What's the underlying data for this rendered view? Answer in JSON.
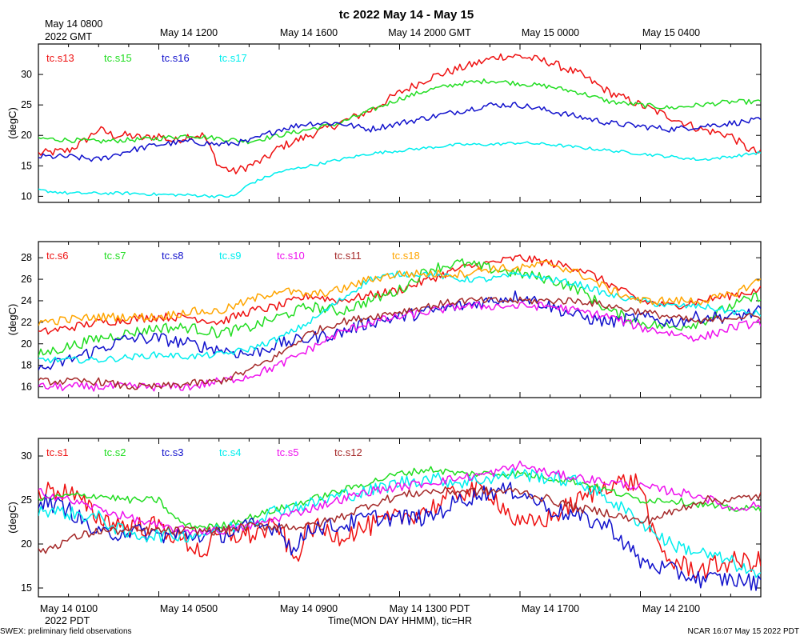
{
  "title": "tc 2022 May 14 - May 15",
  "top_axis": {
    "first_label_line1": "May 14 0800",
    "first_label_line2": "2022 GMT",
    "labels": [
      "May 14 1200",
      "May 14 1600",
      "May 14 2000 GMT",
      "May 15 0000",
      "May 15 0400"
    ]
  },
  "bottom_axis": {
    "labels": [
      "May 14 0100",
      "May 14 0500",
      "May 14 0900",
      "May 14 1300 PDT",
      "May 14 1700",
      "May 14 2100"
    ],
    "sub_label": "2022 PDT",
    "xlabel": "Time(MON DAY HHMM), tic=HR"
  },
  "footer": {
    "left": "SWEX: preliminary field observations",
    "right": "NCAR 16:07 May 15 2022 PDT"
  },
  "colors": {
    "red": "#ee1111",
    "green": "#22dd22",
    "blue": "#1111cc",
    "cyan": "#00eeee",
    "magenta": "#ee11ee",
    "brown": "#a52a2a",
    "orange": "#ffa500"
  },
  "chart_data": [
    {
      "type": "line",
      "ylabel": "(degC)",
      "ylim": [
        9,
        35
      ],
      "yticks": [
        10,
        15,
        20,
        25,
        30
      ],
      "x_unit": "hours since May 14 0800 GMT",
      "xlim": [
        0,
        24
      ],
      "series": [
        {
          "name": "tc.s13",
          "color": "red",
          "noise": 0.7,
          "x": [
            0,
            1,
            1.5,
            2,
            2.5,
            3,
            3.5,
            4,
            4.5,
            5,
            5.5,
            6,
            6.5,
            7,
            7.5,
            8,
            9,
            10,
            11,
            12,
            13,
            14,
            15,
            15.3,
            16,
            17,
            18,
            19,
            20,
            21,
            22,
            23,
            23.5,
            24
          ],
          "y": [
            17,
            17.5,
            19,
            21,
            20,
            20,
            19.5,
            20,
            19,
            20,
            20,
            15,
            14,
            15,
            16,
            18,
            20,
            22,
            24,
            27,
            29.5,
            31,
            32.5,
            33,
            33,
            32,
            30,
            27,
            25,
            23,
            21,
            20,
            18,
            17
          ]
        },
        {
          "name": "tc.s15",
          "color": "green",
          "noise": 0.4,
          "x": [
            0,
            2,
            4,
            5,
            6,
            7,
            8,
            9,
            10,
            11,
            12,
            13,
            14,
            15,
            16,
            17,
            18,
            19,
            20,
            21,
            22,
            23,
            24
          ],
          "y": [
            19.5,
            19,
            19.5,
            20,
            19.5,
            19,
            20,
            21,
            22,
            24,
            26,
            27.5,
            28.5,
            29,
            28.5,
            28,
            27,
            25.5,
            25,
            24.5,
            25,
            25.5,
            25.5
          ]
        },
        {
          "name": "tc.s16",
          "color": "blue",
          "noise": 0.5,
          "x": [
            0,
            1,
            2,
            3,
            4,
            5,
            6,
            7,
            8,
            9,
            10,
            11,
            12,
            13,
            14,
            15,
            16,
            17,
            18,
            19,
            20,
            21,
            22,
            23,
            24
          ],
          "y": [
            16.5,
            16.5,
            16,
            17.5,
            18.5,
            19,
            18.5,
            19,
            21,
            22,
            22,
            21,
            22,
            23,
            24,
            25,
            25,
            24,
            23,
            22,
            21.5,
            21,
            21.5,
            22,
            22.5
          ]
        },
        {
          "name": "tc.s17",
          "color": "cyan",
          "noise": 0.25,
          "x": [
            0,
            1,
            2,
            3,
            4,
            5,
            6,
            6.5,
            7,
            8,
            9,
            10,
            11,
            12,
            13,
            14,
            15,
            16,
            17,
            18,
            19,
            20,
            21,
            22,
            23,
            24
          ],
          "y": [
            11,
            10.5,
            10.5,
            10.5,
            10.3,
            10.2,
            10,
            10,
            12,
            14,
            15,
            16,
            17,
            17.5,
            18,
            18.5,
            18.5,
            18.8,
            18.5,
            18,
            17.5,
            17,
            16.5,
            16,
            16.5,
            17.2
          ]
        }
      ]
    },
    {
      "type": "line",
      "ylabel": "(degC)",
      "ylim": [
        15,
        29.5
      ],
      "yticks": [
        16,
        18,
        20,
        22,
        24,
        26,
        28
      ],
      "x_unit": "hours since May 14 0800 GMT",
      "xlim": [
        0,
        24
      ],
      "series": [
        {
          "name": "tc.s6",
          "color": "red",
          "noise": 0.4,
          "x": [
            0,
            2,
            4,
            5,
            6,
            7,
            8,
            9,
            10,
            11,
            12,
            13,
            14,
            15,
            16,
            17,
            18,
            19,
            20,
            21,
            22,
            23,
            24
          ],
          "y": [
            21,
            22,
            22.5,
            22.5,
            22,
            23,
            23.5,
            24.5,
            24,
            24.5,
            25,
            26,
            27,
            27.5,
            28,
            27.5,
            27,
            25.5,
            24,
            23.5,
            24,
            24.5,
            25
          ]
        },
        {
          "name": "tc.s7",
          "color": "green",
          "noise": 0.5,
          "x": [
            0,
            2,
            4,
            5,
            6,
            7,
            8,
            9,
            10,
            11,
            12,
            13,
            14,
            15,
            16,
            17,
            18,
            19,
            20,
            21,
            22,
            23,
            24
          ],
          "y": [
            19,
            20.5,
            21.5,
            21.5,
            21,
            21.5,
            22.5,
            23.5,
            23,
            24,
            25,
            27,
            27.5,
            27,
            26.5,
            26,
            25,
            23,
            22,
            21.5,
            22,
            23.5,
            24.5
          ]
        },
        {
          "name": "tc.s8",
          "color": "blue",
          "noise": 0.6,
          "x": [
            0,
            1,
            2,
            3,
            4,
            5,
            6,
            7,
            8,
            9,
            10,
            11,
            12,
            13,
            14,
            15,
            16,
            17,
            18,
            19,
            20,
            21,
            22,
            23,
            24
          ],
          "y": [
            17.5,
            18.5,
            19.5,
            20.5,
            20.5,
            20,
            19.5,
            19,
            20,
            20.5,
            21,
            22,
            22.5,
            23,
            23.5,
            24,
            24.5,
            23.5,
            22.5,
            22,
            22.5,
            22,
            22.5,
            22.5,
            23
          ]
        },
        {
          "name": "tc.s9",
          "color": "cyan",
          "noise": 0.3,
          "x": [
            0,
            2,
            4,
            5,
            6,
            7,
            8,
            9,
            10,
            11,
            12,
            13,
            14,
            15,
            16,
            17,
            18,
            19,
            20,
            21,
            22,
            23,
            24
          ],
          "y": [
            18.5,
            18.5,
            19,
            18.8,
            19,
            19.5,
            20.5,
            22,
            24,
            26,
            26.5,
            26.5,
            26,
            26,
            26.5,
            26,
            25.5,
            24.5,
            24,
            23.5,
            23.5,
            23,
            22.8
          ]
        },
        {
          "name": "tc.s10",
          "color": "magenta",
          "noise": 0.4,
          "x": [
            0,
            2,
            4,
            5,
            6,
            7,
            8,
            9,
            10,
            11,
            12,
            13,
            14,
            15,
            16,
            17,
            18,
            19,
            20,
            21,
            22,
            23,
            24
          ],
          "y": [
            16,
            16,
            16,
            16,
            16.5,
            17,
            18,
            19.5,
            21,
            22,
            22.5,
            23,
            23.5,
            23.5,
            23.5,
            23.5,
            23,
            22.5,
            21.5,
            21,
            20.5,
            21.5,
            22
          ]
        },
        {
          "name": "tc.s11",
          "color": "brown",
          "noise": 0.35,
          "x": [
            0,
            2,
            3,
            4,
            5,
            6,
            7,
            8,
            9,
            10,
            11,
            12,
            13,
            14,
            15,
            16,
            17,
            18,
            19,
            20,
            21,
            22,
            23,
            24
          ],
          "y": [
            16.5,
            16.5,
            16,
            16,
            16.3,
            16.5,
            17.5,
            19,
            21,
            22,
            22.5,
            23,
            23.5,
            24,
            24,
            24,
            24,
            24,
            23.5,
            23,
            22.5,
            22,
            22.5,
            22.5
          ]
        },
        {
          "name": "tc.s18",
          "color": "orange",
          "noise": 0.4,
          "x": [
            0,
            2,
            4,
            5,
            6,
            7,
            8,
            9,
            10,
            11,
            12,
            13,
            14,
            15,
            16,
            17,
            18,
            19,
            20,
            21,
            22,
            23,
            24
          ],
          "y": [
            22,
            22.5,
            22.5,
            23,
            23,
            24,
            25,
            24.5,
            25,
            26,
            26.5,
            26.5,
            26.5,
            27,
            27,
            27.5,
            26.5,
            25,
            24,
            24,
            24,
            24.5,
            26
          ]
        }
      ]
    },
    {
      "type": "line",
      "ylabel": "(degC)",
      "ylim": [
        14,
        32
      ],
      "yticks": [
        15,
        20,
        25,
        30
      ],
      "x_unit": "hours since May 14 0800 GMT",
      "xlim": [
        0,
        24
      ],
      "series": [
        {
          "name": "tc.s1",
          "color": "red",
          "noise": 1.2,
          "x": [
            0,
            1,
            2,
            3,
            4,
            5,
            5.5,
            6,
            7,
            8,
            8.5,
            9,
            10,
            11,
            12,
            13,
            14,
            15,
            16,
            17,
            18,
            19,
            20,
            20.5,
            21,
            22,
            23,
            24
          ],
          "y": [
            26,
            26,
            23,
            22,
            22,
            20,
            19,
            21,
            21,
            22,
            18,
            22,
            21,
            22,
            23,
            24,
            26,
            26,
            22,
            23,
            25,
            27,
            27,
            20,
            18,
            17,
            18,
            18
          ]
        },
        {
          "name": "tc.s2",
          "color": "green",
          "noise": 0.4,
          "x": [
            0,
            1,
            2,
            3,
            4,
            4.5,
            5,
            6,
            7,
            8,
            9,
            10,
            11,
            12,
            13,
            14,
            15,
            16,
            17,
            18,
            19,
            20,
            21,
            22,
            23,
            24
          ],
          "y": [
            25,
            25.5,
            25.5,
            25,
            25,
            23,
            22,
            22,
            23,
            24,
            25,
            26,
            27,
            28,
            28.5,
            28,
            28,
            28,
            27.5,
            27,
            26,
            25,
            25,
            24.5,
            24,
            24
          ]
        },
        {
          "name": "tc.s3",
          "color": "blue",
          "noise": 1.0,
          "x": [
            0,
            1,
            2,
            3,
            4,
            5,
            6,
            7,
            8,
            8.5,
            9,
            10,
            11,
            12,
            13,
            14,
            15,
            16,
            17,
            18,
            19,
            20,
            21,
            22,
            23,
            24
          ],
          "y": [
            25,
            24,
            21,
            21.5,
            21,
            21,
            21,
            22,
            22,
            19,
            22,
            22,
            23,
            23,
            23,
            25,
            26,
            26,
            24,
            23,
            22,
            18,
            17,
            16,
            16,
            15.5
          ]
        },
        {
          "name": "tc.s4",
          "color": "cyan",
          "noise": 0.8,
          "x": [
            0,
            1,
            2,
            3,
            4,
            5,
            6,
            7,
            8,
            9,
            10,
            11,
            12,
            13,
            14,
            15,
            16,
            17,
            18,
            19,
            20,
            21,
            22,
            23,
            24
          ],
          "y": [
            24,
            23.5,
            23,
            21,
            21,
            21,
            21.5,
            22.5,
            24,
            24.5,
            25.5,
            26,
            27,
            27.5,
            27,
            27.5,
            28,
            27.5,
            27,
            25,
            22.5,
            20,
            19,
            18,
            16
          ]
        },
        {
          "name": "tc.s5",
          "color": "magenta",
          "noise": 0.5,
          "x": [
            0,
            1,
            2,
            3,
            4,
            5,
            6,
            7,
            8,
            9,
            10,
            11,
            12,
            13,
            14,
            15,
            16,
            17,
            18,
            19,
            20,
            21,
            22,
            23,
            24
          ],
          "y": [
            26,
            25,
            24,
            23,
            22,
            21.5,
            21.5,
            22,
            23,
            24,
            25,
            26,
            26.5,
            27,
            27.5,
            28,
            29,
            28,
            27.5,
            27,
            26.5,
            26,
            25.5,
            24,
            24.5
          ]
        },
        {
          "name": "tc.s12",
          "color": "brown",
          "noise": 0.5,
          "x": [
            0,
            1,
            2,
            3,
            4,
            5,
            6,
            7,
            8,
            9,
            10,
            11,
            12,
            13,
            14,
            15,
            16,
            17,
            18,
            19,
            20,
            21,
            22,
            23,
            24
          ],
          "y": [
            19,
            20.5,
            21.5,
            21.5,
            21.5,
            21.5,
            21.5,
            22,
            22,
            22,
            23,
            24.5,
            25.5,
            26,
            26,
            26,
            26,
            25,
            24,
            23.5,
            22.5,
            23.5,
            25,
            25,
            25.5
          ]
        }
      ]
    }
  ]
}
